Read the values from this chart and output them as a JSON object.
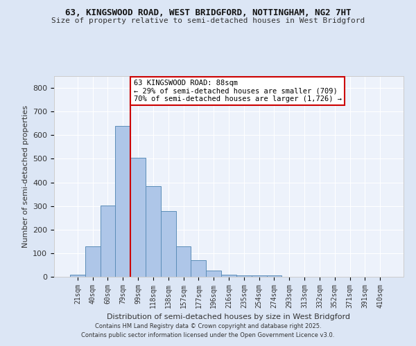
{
  "title1": "63, KINGSWOOD ROAD, WEST BRIDGFORD, NOTTINGHAM, NG2 7HT",
  "title2": "Size of property relative to semi-detached houses in West Bridgford",
  "xlabel": "Distribution of semi-detached houses by size in West Bridgford",
  "ylabel": "Number of semi-detached properties",
  "bin_labels": [
    "21sqm",
    "40sqm",
    "60sqm",
    "79sqm",
    "99sqm",
    "118sqm",
    "138sqm",
    "157sqm",
    "177sqm",
    "196sqm",
    "216sqm",
    "235sqm",
    "254sqm",
    "274sqm",
    "293sqm",
    "313sqm",
    "332sqm",
    "352sqm",
    "371sqm",
    "391sqm",
    "410sqm"
  ],
  "bin_values": [
    8,
    128,
    302,
    638,
    503,
    383,
    278,
    130,
    70,
    27,
    10,
    5,
    5,
    5,
    0,
    0,
    0,
    0,
    0,
    0,
    0
  ],
  "bar_color": "#aec6e8",
  "bar_edge_color": "#5b8db8",
  "vline_color": "#cc0000",
  "annotation_text": "63 KINGSWOOD ROAD: 88sqm\n← 29% of semi-detached houses are smaller (709)\n70% of semi-detached houses are larger (1,726) →",
  "annotation_box_color": "#ffffff",
  "annotation_box_edge": "#cc0000",
  "ylim": [
    0,
    850
  ],
  "yticks": [
    0,
    100,
    200,
    300,
    400,
    500,
    600,
    700,
    800
  ],
  "footer1": "Contains HM Land Registry data © Crown copyright and database right 2025.",
  "footer2": "Contains public sector information licensed under the Open Government Licence v3.0.",
  "bg_color": "#dce6f5",
  "plot_bg_color": "#edf2fb",
  "vline_x": 3.5
}
